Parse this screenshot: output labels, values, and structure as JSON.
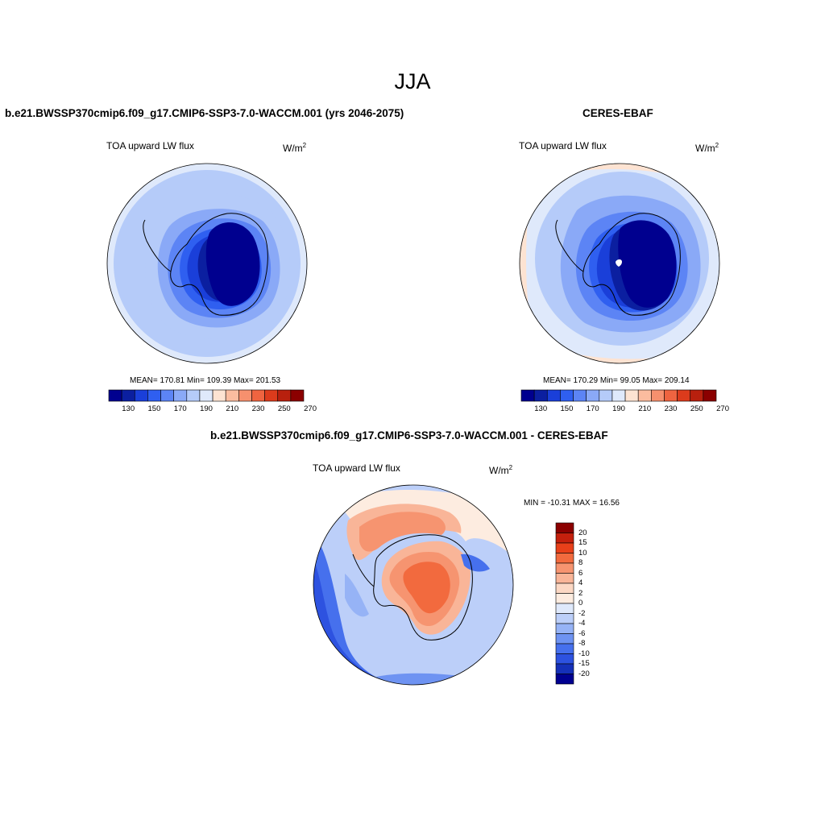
{
  "figure": {
    "title": "JJA"
  },
  "panels": {
    "model": {
      "title": "b.e21.BWSSP370cmip6.f09_g17.CMIP6-SSP3-7.0-WACCM.001 (yrs 2046-2075)",
      "variable": "TOA upward LW flux",
      "units_base": "W/m",
      "units_exp": "2",
      "stats": "MEAN= 170.81  Min= 109.39  Max= 201.53"
    },
    "obs": {
      "title": "CERES-EBAF",
      "variable": "TOA upward LW flux",
      "units_base": "W/m",
      "units_exp": "2",
      "stats": "MEAN= 170.29  Min=  99.05  Max= 209.14"
    },
    "diff": {
      "title": "b.e21.BWSSP370cmip6.f09_g17.CMIP6-SSP3-7.0-WACCM.001 - CERES-EBAF",
      "variable": "TOA upward LW flux",
      "units_base": "W/m",
      "units_exp": "2",
      "stats": "MIN = -10.31 MAX =  16.56"
    }
  },
  "colorbar_abs": {
    "colors": [
      "#00008f",
      "#0b1fa0",
      "#1a3fd9",
      "#2f5ff0",
      "#5c84f5",
      "#8aa9f7",
      "#b5cbf9",
      "#dfe9fb",
      "#fde3d2",
      "#fbbc9f",
      "#f6906e",
      "#ef6440",
      "#dc3b1c",
      "#b8200e",
      "#8b0000"
    ],
    "labels": [
      "130",
      "150",
      "170",
      "190",
      "210",
      "230",
      "250",
      "270"
    ]
  },
  "colorbar_diff": {
    "colors": [
      "#8b0000",
      "#c4200d",
      "#e8401a",
      "#f26a3e",
      "#f69470",
      "#f9b598",
      "#fcd8c4",
      "#fdece0",
      "#dfe9fb",
      "#bccff9",
      "#96b3f6",
      "#6e93f2",
      "#4670ed",
      "#2d52e0",
      "#1530b8",
      "#000090"
    ],
    "labels": [
      "20",
      "15",
      "10",
      "8",
      "6",
      "4",
      "2",
      "0",
      "-2",
      "-4",
      "-6",
      "-8",
      "-10",
      "-15",
      "-20"
    ]
  }
}
